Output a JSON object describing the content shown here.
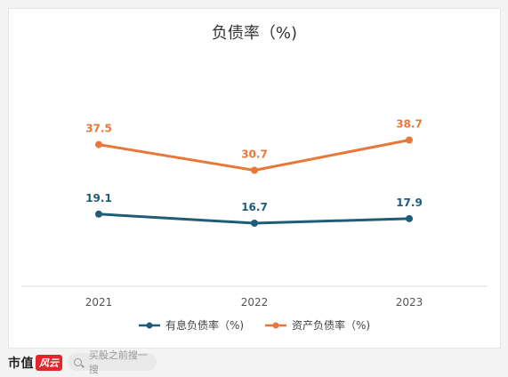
{
  "chart_data": {
    "type": "line",
    "title": "负债率（%)",
    "categories": [
      "2021",
      "2022",
      "2023"
    ],
    "series": [
      {
        "name": "有息负债率（%)",
        "color": "#1f5c78",
        "values": [
          19.1,
          16.7,
          17.9
        ],
        "labels": [
          "19.1",
          "16.7",
          "17.9"
        ]
      },
      {
        "name": "资产负债率（%)",
        "color": "#e8773a",
        "values": [
          37.5,
          30.7,
          38.7
        ],
        "labels": [
          "37.5",
          "30.7",
          "38.7"
        ]
      }
    ],
    "ylim": [
      0,
      60
    ],
    "grid": false,
    "legend": "bottom"
  },
  "footer": {
    "brand": "市值",
    "brand_logo": "风云",
    "search_placeholder": "买股之前搜一搜",
    "search_icon": "search-icon"
  }
}
